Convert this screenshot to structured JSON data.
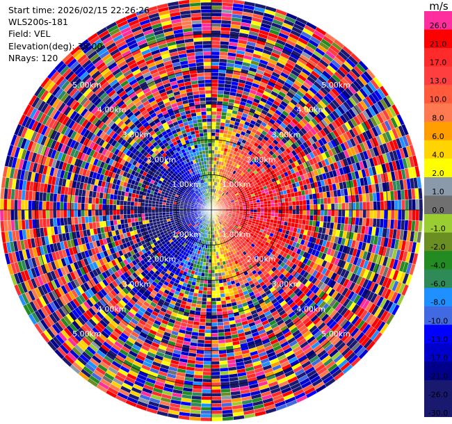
{
  "header": {
    "start_time": "Start time: 2026/02/15 22:26:26",
    "instrument": "WLS200s-181",
    "field": "Field: VEL",
    "elevation": "Elevation(deg): 35.00",
    "nrays": "NRays: 120"
  },
  "colorbar": {
    "unit": "m/s",
    "levels": [
      {
        "label": "26.0",
        "color": "#ff2e9e"
      },
      {
        "label": "21.0",
        "color": "#ff0000"
      },
      {
        "label": "17.0",
        "color": "#ff2a2a"
      },
      {
        "label": "13.0",
        "color": "#ff3f3f"
      },
      {
        "label": "10.0",
        "color": "#ff5a3c"
      },
      {
        "label": "8.0",
        "color": "#ff7a50"
      },
      {
        "label": "6.0",
        "color": "#ff9e00"
      },
      {
        "label": "4.0",
        "color": "#ffd400"
      },
      {
        "label": "2.0",
        "color": "#ffff00"
      },
      {
        "label": "1.0",
        "color": "#8a9aaa"
      },
      {
        "label": "0.0",
        "color": "#707070"
      },
      {
        "label": "-1.0",
        "color": "#9acd32"
      },
      {
        "label": "-2.0",
        "color": "#6b8e23"
      },
      {
        "label": "-4.0",
        "color": "#228b22"
      },
      {
        "label": "-6.0",
        "color": "#2e8b57"
      },
      {
        "label": "-8.0",
        "color": "#1e90ff"
      },
      {
        "label": "-10.0",
        "color": "#4169e1"
      },
      {
        "label": "-13.0",
        "color": "#0000ff"
      },
      {
        "label": "-17.0",
        "color": "#0000cd"
      },
      {
        "label": "-21.0",
        "color": "#00008b"
      },
      {
        "label": "-26.0",
        "color": "#191970"
      },
      {
        "label": "-30.0",
        "color": "#191970"
      }
    ]
  },
  "chart_data": {
    "type": "heatmap",
    "projection": "polar PPI",
    "field": "VEL",
    "rays": 120,
    "elevation_deg": 35.0,
    "range_rings_km": [
      1.0,
      2.0,
      3.0,
      4.0,
      5.0
    ],
    "range_ring_labels": [
      "1.00km",
      "2.00km",
      "3.00km",
      "4.00km",
      "5.00km"
    ],
    "max_range_km": 6.0,
    "structure": "positive velocities (pink/red, up to 26 m/s) east of the radar, negative velocities (blue/green, down to -30 m/s) west of the radar within about 3 km; noisy multicolored returns beyond"
  }
}
